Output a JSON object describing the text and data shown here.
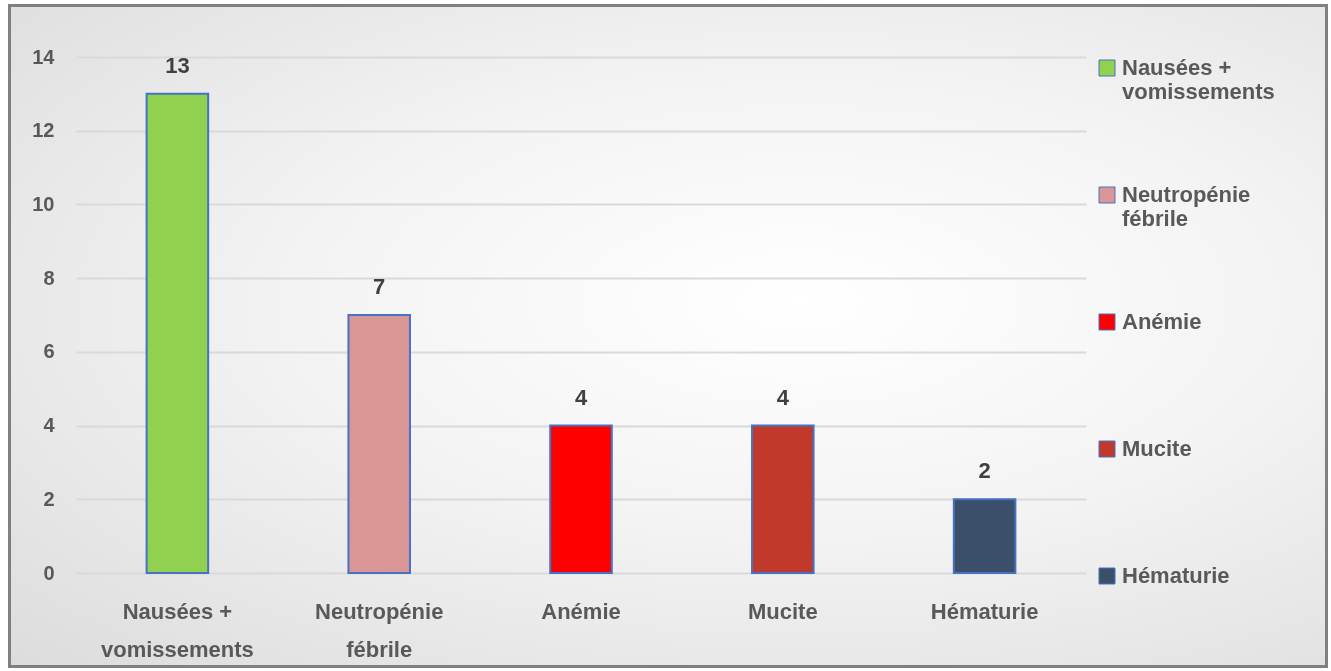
{
  "chart_data": {
    "type": "bar",
    "categories": [
      "Nausées + vomissements",
      "Neutropénie fébrile",
      "Anémie",
      "Mucite",
      "Hématurie"
    ],
    "series": [
      {
        "name": "Nausées + vomissements",
        "color": "#92d050",
        "values": [
          13,
          null,
          null,
          null,
          null
        ]
      },
      {
        "name": "Neutropénie fébrile",
        "color": "#d99694",
        "values": [
          null,
          7,
          null,
          null,
          null
        ]
      },
      {
        "name": "Anémie",
        "color": "#ff0000",
        "values": [
          null,
          null,
          4,
          null,
          null
        ]
      },
      {
        "name": "Mucite",
        "color": "#c0392b",
        "values": [
          null,
          null,
          null,
          4,
          null
        ]
      },
      {
        "name": "Hématurie",
        "color": "#3b4f6b",
        "values": [
          null,
          null,
          null,
          null,
          2
        ]
      }
    ],
    "ylim": [
      0,
      14
    ],
    "yticks": [
      0,
      2,
      4,
      6,
      8,
      10,
      12,
      14
    ],
    "grid": "y",
    "legend": "right",
    "data_labels": true
  }
}
